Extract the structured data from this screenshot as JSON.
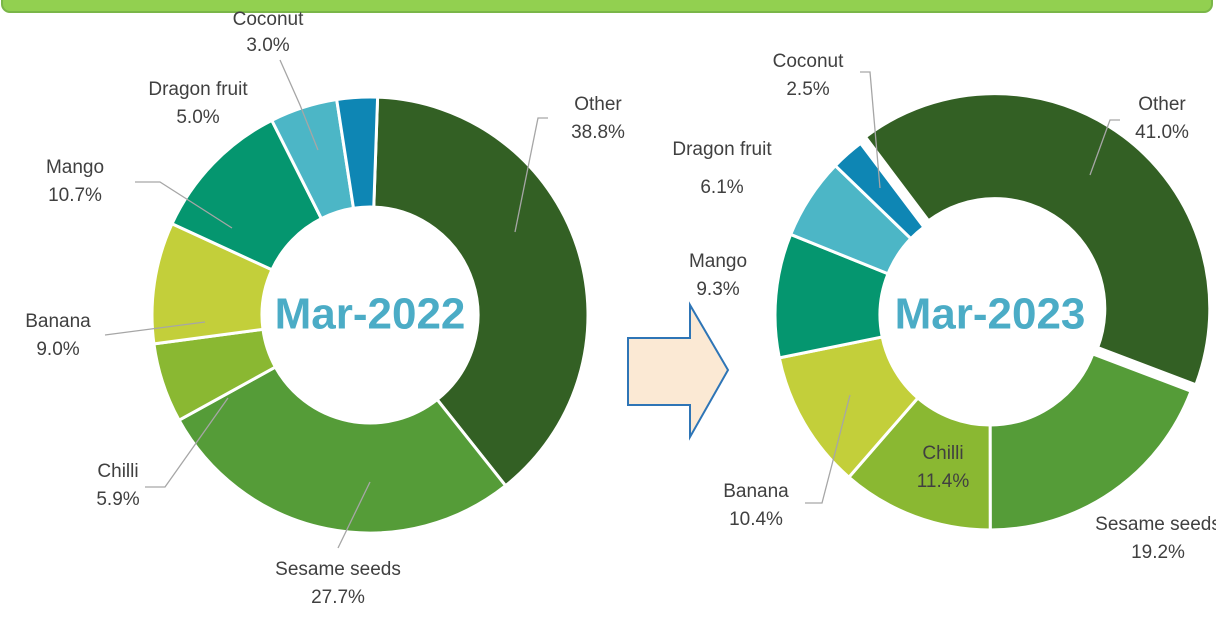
{
  "chart_data": [
    {
      "type": "donut",
      "title": "Mar-2022",
      "categories": [
        "Other",
        "Sesame seeds",
        "Chilli",
        "Banana",
        "Mango",
        "Dragon fruit",
        "Coconut"
      ],
      "values": [
        38.8,
        27.7,
        5.9,
        9.0,
        10.7,
        5.0,
        3.0
      ],
      "value_labels": [
        "38.8%",
        "27.7%",
        "5.9%",
        "9.0%",
        "10.7%",
        "5.0%",
        "3.0%"
      ],
      "colors": [
        "#336024",
        "#559c38",
        "#8ab832",
        "#c3cf3a",
        "#05966f",
        "#4cb6c6",
        "#0e86b4"
      ]
    },
    {
      "type": "donut",
      "title": "Mar-2023",
      "categories": [
        "Other",
        "Sesame seeds",
        "Chilli",
        "Banana",
        "Mango",
        "Dragon fruit",
        "Coconut"
      ],
      "values": [
        41.0,
        19.2,
        11.4,
        10.4,
        9.3,
        6.1,
        2.5
      ],
      "value_labels": [
        "41.0%",
        "19.2%",
        "11.4%",
        "10.4%",
        "9.3%",
        "6.1%",
        "2.5%"
      ],
      "colors": [
        "#336024",
        "#559c38",
        "#8ab832",
        "#c3cf3a",
        "#05966f",
        "#4cb6c6",
        "#0e86b4"
      ]
    }
  ]
}
